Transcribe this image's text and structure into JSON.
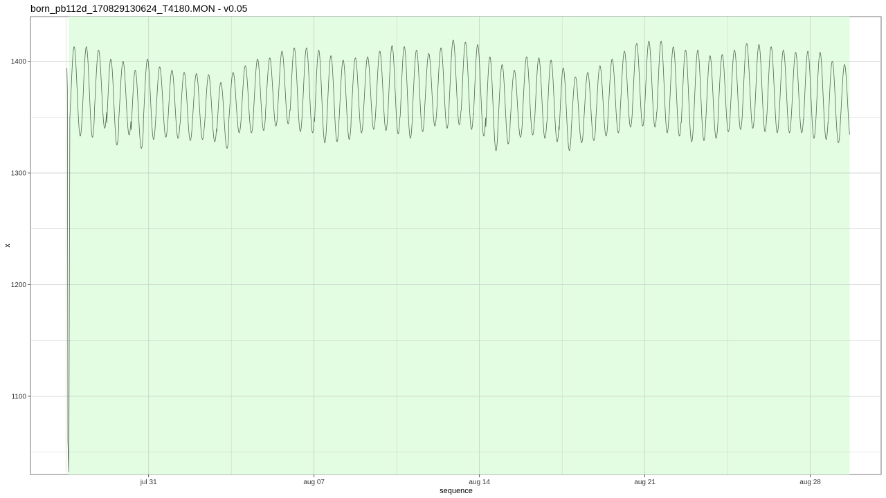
{
  "chart_data": {
    "type": "line",
    "title": "born_pb112d_170829130624_T4180.MON - v0.05",
    "xlabel": "sequence",
    "ylabel": "x",
    "x_axis_type": "date",
    "xlim": [
      "2017-07-26T00:00",
      "2017-08-31T00:00"
    ],
    "ylim": [
      1030,
      1440
    ],
    "yticks": [
      1100,
      1200,
      1300,
      1400
    ],
    "xticks": [
      {
        "date": "2017-07-31",
        "label": "jul 31"
      },
      {
        "date": "2017-08-07",
        "label": "aug 07"
      },
      {
        "date": "2017-08-14",
        "label": "aug 14"
      },
      {
        "date": "2017-08-21",
        "label": "aug 21"
      },
      {
        "date": "2017-08-28",
        "label": "aug 28"
      }
    ],
    "grid": true,
    "shaded_region": {
      "start": "2017-07-27T15:00",
      "end": "2017-08-29T16:00",
      "color": "#e2fde2"
    },
    "series": [
      {
        "color": "#556655",
        "x": [
          "2017-07-27T13:00",
          "2017-07-27T13:30",
          "2017-07-27T14:00",
          "2017-07-27T15:00"
        ],
        "y": [
          1394,
          1375,
          1060,
          1032
        ],
        "oscillation": {
          "start": "2017-07-27T16:00",
          "end": "2017-08-29T16:00",
          "period_hours": 12.42,
          "peaks": [
            1413,
            1413,
            1410,
            1402,
            1400,
            1392,
            1402,
            1395,
            1392,
            1390,
            1389,
            1388,
            1381,
            1390,
            1396,
            1402,
            1403,
            1409,
            1412,
            1412,
            1410,
            1405,
            1401,
            1403,
            1404,
            1409,
            1414,
            1413,
            1410,
            1407,
            1412,
            1419,
            1417,
            1415,
            1404,
            1397,
            1392,
            1404,
            1403,
            1401,
            1394,
            1386,
            1390,
            1396,
            1402,
            1409,
            1416,
            1418,
            1418,
            1413,
            1410,
            1410,
            1405,
            1406,
            1410,
            1416,
            1415,
            1413,
            1410,
            1408,
            1409,
            1408,
            1400,
            1397,
            1395
          ],
          "troughs": [
            1333,
            1332,
            1340,
            1325,
            1334,
            1322,
            1330,
            1332,
            1331,
            1329,
            1330,
            1328,
            1322,
            1336,
            1336,
            1338,
            1342,
            1344,
            1337,
            1336,
            1327,
            1328,
            1330,
            1336,
            1339,
            1338,
            1335,
            1331,
            1337,
            1342,
            1340,
            1343,
            1339,
            1333,
            1320,
            1326,
            1332,
            1334,
            1331,
            1328,
            1320,
            1327,
            1329,
            1333,
            1336,
            1341,
            1342,
            1341,
            1336,
            1333,
            1328,
            1329,
            1331,
            1337,
            1339,
            1340,
            1337,
            1336,
            1336,
            1336,
            1331,
            1330,
            1327,
            1330,
            1334
          ]
        }
      }
    ]
  }
}
